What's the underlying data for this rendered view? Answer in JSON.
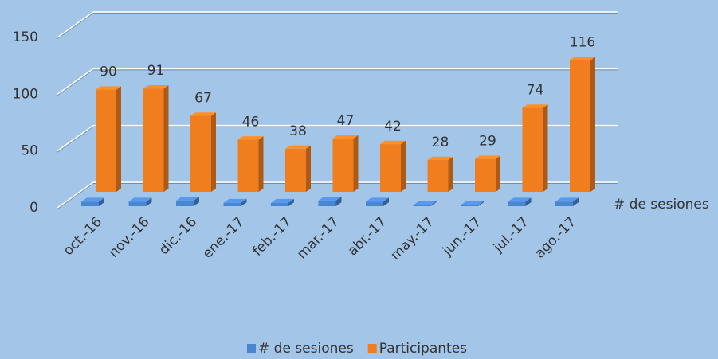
{
  "chart_data": {
    "type": "bar3d",
    "categories": [
      "oct.-16",
      "nov.-16",
      "dic.-16",
      "ene.-17",
      "feb.-17",
      "mar.-17",
      "abr.-17",
      "may.-17",
      "jun.-17",
      "jul.-17",
      "ago.-17"
    ],
    "series": [
      {
        "name": "# de sesiones",
        "color": "#4a86d0",
        "values": [
          4,
          4,
          5,
          3,
          3,
          5,
          4,
          1,
          1,
          4,
          4
        ]
      },
      {
        "name": "Participantes",
        "color": "#f07d1e",
        "values": [
          90,
          91,
          67,
          46,
          38,
          47,
          42,
          28,
          29,
          74,
          116
        ]
      }
    ],
    "depth_axis_label": "# de sesiones",
    "ylim": [
      0,
      150
    ],
    "yticks": [
      0,
      50,
      100,
      150
    ],
    "grid": true,
    "legend": "bottom"
  }
}
